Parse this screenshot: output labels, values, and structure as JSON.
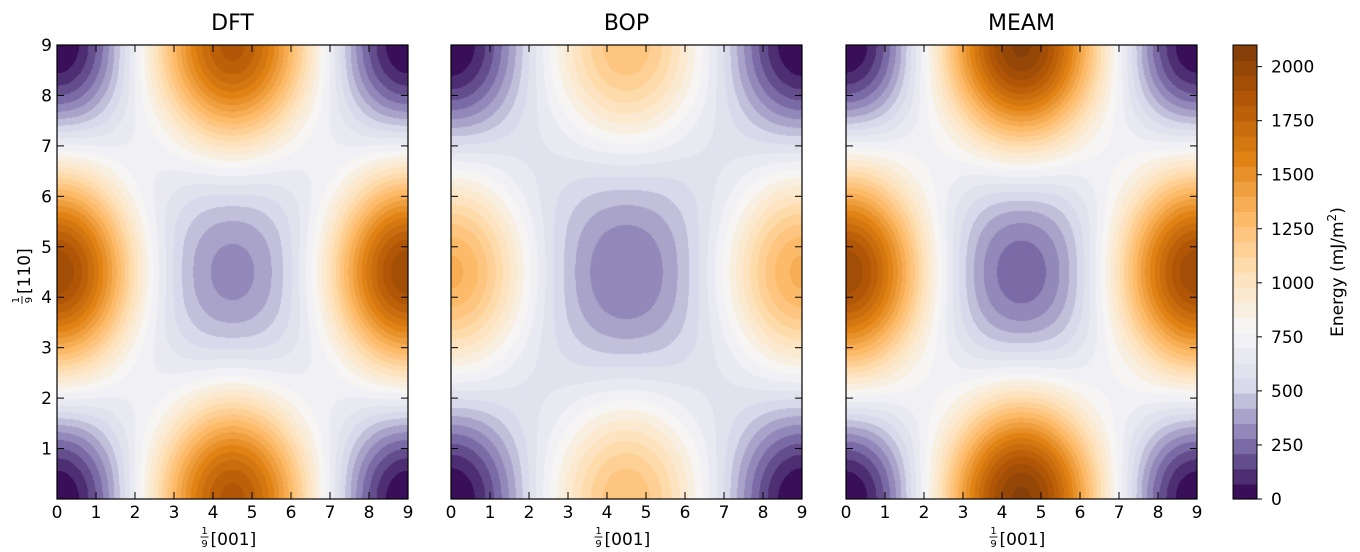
{
  "chart_data": [
    {
      "type": "heatmap",
      "title": "DFT",
      "xlabel": "[001]",
      "ylabel": "[110]",
      "xlabel_prefix": {
        "num": "1",
        "den": "9"
      },
      "ylabel_prefix": {
        "num": "1",
        "den": "9"
      },
      "xlim": [
        0,
        9
      ],
      "ylim": [
        0,
        9
      ],
      "xticks": [
        0,
        1,
        2,
        3,
        4,
        5,
        6,
        7,
        8,
        9
      ],
      "yticks": [
        1,
        2,
        3,
        4,
        5,
        6,
        7,
        8,
        9
      ],
      "features": {
        "max_at": [
          [
            0,
            4.5
          ],
          [
            9,
            4.5
          ],
          [
            4.5,
            0
          ],
          [
            4.5,
            9
          ]
        ],
        "corner_min": [
          [
            0,
            0
          ],
          [
            9,
            0
          ],
          [
            0,
            9
          ],
          [
            9,
            9
          ]
        ],
        "center_local_min": [
          4.5,
          4.5
        ],
        "edge_max_value": 1850,
        "side_max_value": 1950,
        "center_value": 320,
        "saddle_value": 720
      }
    },
    {
      "type": "heatmap",
      "title": "BOP",
      "xlabel": "[001]",
      "xlabel_prefix": {
        "num": "1",
        "den": "9"
      },
      "xlim": [
        0,
        9
      ],
      "ylim": [
        0,
        9
      ],
      "xticks": [
        0,
        1,
        2,
        3,
        4,
        5,
        6,
        7,
        8,
        9
      ],
      "yticks": [
        1,
        2,
        3,
        4,
        5,
        6,
        7,
        8,
        9
      ],
      "features": {
        "max_at": [
          [
            0,
            4.5
          ],
          [
            9,
            4.5
          ],
          [
            4.5,
            0
          ],
          [
            4.5,
            9
          ]
        ],
        "corner_min": [
          [
            0,
            0
          ],
          [
            9,
            0
          ],
          [
            0,
            9
          ],
          [
            9,
            9
          ]
        ],
        "center_local_min": [
          4.5,
          4.5
        ],
        "edge_max_value": 1250,
        "side_max_value": 1350,
        "center_value": 280,
        "saddle_value": 620
      }
    },
    {
      "type": "heatmap",
      "title": "MEAM",
      "xlabel": "[001]",
      "xlabel_prefix": {
        "num": "1",
        "den": "9"
      },
      "xlim": [
        0,
        9
      ],
      "ylim": [
        0,
        9
      ],
      "xticks": [
        0,
        1,
        2,
        3,
        4,
        5,
        6,
        7,
        8,
        9
      ],
      "yticks": [
        1,
        2,
        3,
        4,
        5,
        6,
        7,
        8,
        9
      ],
      "features": {
        "max_at": [
          [
            0,
            4.5
          ],
          [
            9,
            4.5
          ],
          [
            4.5,
            0
          ],
          [
            4.5,
            9
          ]
        ],
        "corner_min": [
          [
            0,
            0
          ],
          [
            9,
            0
          ],
          [
            0,
            9
          ],
          [
            9,
            9
          ]
        ],
        "center_local_min": [
          4.5,
          4.5
        ],
        "edge_max_value": 2050,
        "side_max_value": 1950,
        "center_value": 230,
        "saddle_value": 760
      }
    }
  ],
  "colorbar": {
    "label": "Energy (mJ/m",
    "label_sup": "2",
    "label_end": ")",
    "range": [
      0,
      2100
    ],
    "ticks": [
      0,
      250,
      500,
      750,
      1000,
      1250,
      1500,
      1750,
      2000
    ],
    "colormap": "PuOr_r",
    "colors": [
      "#2d004b",
      "#8073ac",
      "#d8daeb",
      "#f7f7f7",
      "#fee0b6",
      "#fdb863",
      "#e08214",
      "#b35806",
      "#7f3b08"
    ]
  }
}
